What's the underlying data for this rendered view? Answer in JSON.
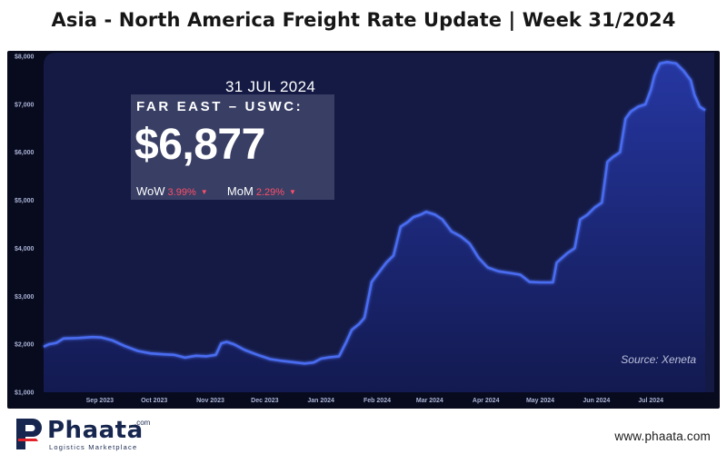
{
  "header": {
    "title": "Asia - North America Freight Rate Update | Week 31/2024"
  },
  "info_panel": {
    "date": "31 JUL 2024",
    "route": "FAR EAST – USWC:",
    "rate": "$6,877",
    "wow_label": "WoW",
    "wow_value": "3.99%",
    "wow_arrow": "▼",
    "mom_label": "MoM",
    "mom_value": "2.29%",
    "mom_arrow": "▼",
    "change_color": "#ff4f6a"
  },
  "source": "Source: Xeneta",
  "footer": {
    "brand": "Phaata",
    "brand_suffix": ".com",
    "tagline": "Logistics Marketplace",
    "website": "www.phaata.com"
  },
  "chart_data": {
    "type": "area",
    "title": "Asia - North America Freight Rate Update | Week 31/2024",
    "series_name": "FAR EAST – USWC",
    "x_start": "2023-08-01",
    "x_end": "2024-07-31",
    "xlim": [
      "2023-08-01",
      "2024-08-05"
    ],
    "ylim": [
      1000,
      8000
    ],
    "y_ticks": [
      1000,
      2000,
      3000,
      4000,
      5000,
      6000,
      7000,
      8000
    ],
    "y_tick_labels": [
      "$1,000",
      "$2,000",
      "$3,000",
      "$4,000",
      "$5,000",
      "$6,000",
      "$7,000",
      "$8,000"
    ],
    "x_ticks": [
      {
        "date": "2023-09-01",
        "label": "Sep 2023"
      },
      {
        "date": "2023-10-01",
        "label": "Oct 2023"
      },
      {
        "date": "2023-11-01",
        "label": "Nov 2023"
      },
      {
        "date": "2023-12-01",
        "label": "Dec 2023"
      },
      {
        "date": "2024-01-01",
        "label": "Jan 2024"
      },
      {
        "date": "2024-02-01",
        "label": "Feb 2024"
      },
      {
        "date": "2024-03-01",
        "label": "Mar 2024"
      },
      {
        "date": "2024-04-01",
        "label": "Apr 2024"
      },
      {
        "date": "2024-05-01",
        "label": "May 2024"
      },
      {
        "date": "2024-06-01",
        "label": "Jun 2024"
      },
      {
        "date": "2024-07-01",
        "label": "Jul 2024"
      }
    ],
    "points": [
      [
        "2023-08-01",
        1950
      ],
      [
        "2023-08-04",
        2000
      ],
      [
        "2023-08-08",
        2030
      ],
      [
        "2023-08-12",
        2120
      ],
      [
        "2023-08-20",
        2130
      ],
      [
        "2023-08-28",
        2150
      ],
      [
        "2023-09-02",
        2140
      ],
      [
        "2023-09-08",
        2080
      ],
      [
        "2023-09-15",
        1960
      ],
      [
        "2023-09-22",
        1860
      ],
      [
        "2023-09-29",
        1810
      ],
      [
        "2023-10-06",
        1790
      ],
      [
        "2023-10-12",
        1780
      ],
      [
        "2023-10-18",
        1720
      ],
      [
        "2023-10-24",
        1760
      ],
      [
        "2023-10-30",
        1750
      ],
      [
        "2023-11-04",
        1780
      ],
      [
        "2023-11-07",
        2020
      ],
      [
        "2023-11-10",
        2050
      ],
      [
        "2023-11-14",
        2000
      ],
      [
        "2023-11-20",
        1880
      ],
      [
        "2023-11-27",
        1780
      ],
      [
        "2023-12-04",
        1690
      ],
      [
        "2023-12-11",
        1650
      ],
      [
        "2023-12-18",
        1620
      ],
      [
        "2023-12-23",
        1600
      ],
      [
        "2023-12-28",
        1620
      ],
      [
        "2024-01-01",
        1700
      ],
      [
        "2024-01-06",
        1730
      ],
      [
        "2024-01-11",
        1750
      ],
      [
        "2024-01-15",
        2050
      ],
      [
        "2024-01-18",
        2300
      ],
      [
        "2024-01-22",
        2420
      ],
      [
        "2024-01-25",
        2550
      ],
      [
        "2024-01-29",
        3300
      ],
      [
        "2024-02-02",
        3500
      ],
      [
        "2024-02-06",
        3700
      ],
      [
        "2024-02-10",
        3850
      ],
      [
        "2024-02-14",
        4450
      ],
      [
        "2024-02-18",
        4550
      ],
      [
        "2024-02-21",
        4650
      ],
      [
        "2024-02-25",
        4700
      ],
      [
        "2024-02-28",
        4760
      ],
      [
        "2024-03-04",
        4700
      ],
      [
        "2024-03-08",
        4600
      ],
      [
        "2024-03-13",
        4350
      ],
      [
        "2024-03-18",
        4250
      ],
      [
        "2024-03-23",
        4100
      ],
      [
        "2024-03-28",
        3800
      ],
      [
        "2024-04-02",
        3600
      ],
      [
        "2024-04-08",
        3520
      ],
      [
        "2024-04-15",
        3480
      ],
      [
        "2024-04-20",
        3450
      ],
      [
        "2024-04-25",
        3300
      ],
      [
        "2024-05-01",
        3290
      ],
      [
        "2024-05-08",
        3290
      ],
      [
        "2024-05-10",
        3700
      ],
      [
        "2024-05-13",
        3800
      ],
      [
        "2024-05-16",
        3900
      ],
      [
        "2024-05-20",
        4000
      ],
      [
        "2024-05-23",
        4600
      ],
      [
        "2024-05-27",
        4700
      ],
      [
        "2024-05-31",
        4850
      ],
      [
        "2024-06-04",
        4950
      ],
      [
        "2024-06-07",
        5800
      ],
      [
        "2024-06-10",
        5900
      ],
      [
        "2024-06-14",
        6000
      ],
      [
        "2024-06-17",
        6700
      ],
      [
        "2024-06-20",
        6850
      ],
      [
        "2024-06-24",
        6950
      ],
      [
        "2024-06-28",
        7000
      ],
      [
        "2024-07-01",
        7300
      ],
      [
        "2024-07-03",
        7600
      ],
      [
        "2024-07-06",
        7850
      ],
      [
        "2024-07-10",
        7880
      ],
      [
        "2024-07-15",
        7850
      ],
      [
        "2024-07-19",
        7700
      ],
      [
        "2024-07-23",
        7500
      ],
      [
        "2024-07-25",
        7200
      ],
      [
        "2024-07-28",
        6950
      ],
      [
        "2024-07-31",
        6877
      ]
    ],
    "line_color": "#4a6cf0",
    "fill_color": "#1e2c86",
    "background": "#080a1e",
    "grid": false,
    "source": "Source: Xeneta"
  }
}
